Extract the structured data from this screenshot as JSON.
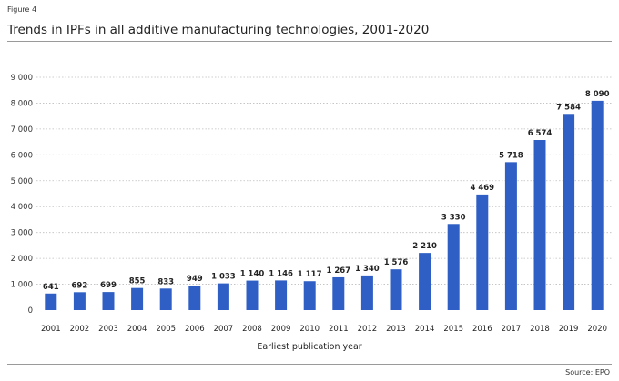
{
  "figure_label": "Figure 4",
  "source": "Source: EPO",
  "chart_data": {
    "type": "bar",
    "title": "Trends in IPFs in all additive manufacturing technologies, 2001-2020",
    "xlabel": "Earliest publication year",
    "ylabel": "",
    "ylim": [
      0,
      9000
    ],
    "yticks": [
      0,
      1000,
      2000,
      3000,
      4000,
      5000,
      6000,
      7000,
      8000,
      9000
    ],
    "ytick_labels": [
      "0",
      "1 000",
      "2 000",
      "3 000",
      "4 000",
      "5 000",
      "6 000",
      "7 000",
      "8 000",
      "9 000"
    ],
    "grid": "horizontal dotted",
    "bar_color": "#2f5fc4",
    "categories": [
      "2001",
      "2002",
      "2003",
      "2004",
      "2005",
      "2006",
      "2007",
      "2008",
      "2009",
      "2010",
      "2011",
      "2012",
      "2013",
      "2014",
      "2015",
      "2016",
      "2017",
      "2018",
      "2019",
      "2020"
    ],
    "values": [
      641,
      692,
      699,
      855,
      833,
      949,
      1033,
      1140,
      1146,
      1117,
      1267,
      1340,
      1576,
      2210,
      3330,
      4469,
      5718,
      6574,
      7584,
      8090
    ],
    "value_labels": [
      "641",
      "692",
      "699",
      "855",
      "833",
      "949",
      "1 033",
      "1 140",
      "1 146",
      "1 117",
      "1 267",
      "1 340",
      "1 576",
      "2 210",
      "3 330",
      "4 469",
      "5 718",
      "6 574",
      "7 584",
      "8 090"
    ]
  }
}
